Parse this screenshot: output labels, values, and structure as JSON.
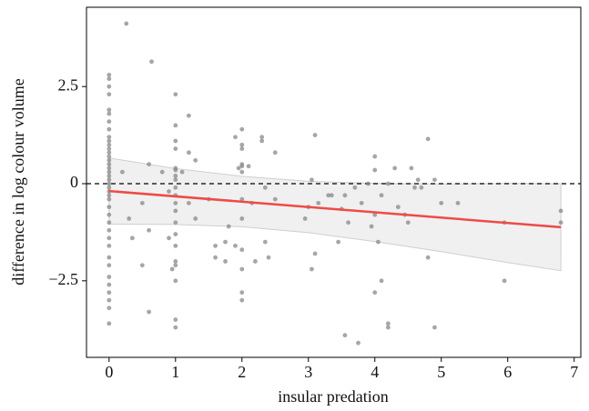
{
  "chart_data": {
    "type": "scatter",
    "xlabel": "insular predation",
    "ylabel": "difference in log colour volume",
    "xlim": [
      -0.34,
      7.1
    ],
    "ylim": [
      -4.47,
      4.54
    ],
    "xticks": [
      0,
      1,
      2,
      3,
      4,
      5,
      6,
      7
    ],
    "yticks": [
      {
        "value": -2.5,
        "label": "−2.5"
      },
      0,
      2.5
    ],
    "hline": 0,
    "color": "#888888",
    "x": [
      0,
      0,
      0,
      0,
      0,
      0,
      0,
      0,
      0,
      0,
      0,
      0,
      0,
      0,
      0,
      0,
      0,
      0,
      0,
      0,
      0,
      0,
      0,
      0,
      0,
      0,
      0,
      0,
      0,
      0,
      0,
      0,
      0,
      0,
      0,
      0,
      0,
      0,
      0,
      0.26,
      0.64,
      0.2,
      0.3,
      0.35,
      0.5,
      0.5,
      0.6,
      0.6,
      0.6,
      0.8,
      0.9,
      0.9,
      0.95,
      1,
      1,
      1,
      1,
      1,
      1,
      1,
      1,
      1,
      1,
      1,
      1,
      1,
      1,
      1,
      1,
      1,
      1,
      1,
      1,
      1.2,
      1.2,
      1.1,
      1.3,
      1.2,
      1.3,
      1.5,
      1.6,
      1.6,
      1.75,
      1.75,
      1.8,
      1.9,
      1.9,
      1.95,
      2,
      2,
      2,
      2,
      2,
      2,
      2,
      2,
      2,
      2,
      2,
      2,
      2.1,
      2.15,
      2.2,
      2.3,
      2.3,
      2.35,
      2.35,
      2.4,
      2.5,
      2.5,
      2.95,
      3.0,
      3.05,
      3.05,
      3.1,
      3.1,
      3.15,
      3.3,
      3.35,
      3.45,
      3.5,
      3.55,
      3.6,
      3.55,
      3.75,
      3.7,
      3.8,
      3.9,
      3.95,
      4.0,
      4.0,
      4.0,
      4.0,
      4.05,
      4.1,
      4.1,
      4.2,
      4.2,
      4.2,
      4.3,
      4.35,
      4.45,
      4.5,
      4.55,
      4.6,
      4.65,
      4.7,
      4.8,
      4.8,
      4.9,
      4.9,
      5.0,
      5.25,
      5.95,
      5.95,
      6.8,
      6.8
    ],
    "values": [
      2.8,
      2.7,
      2.5,
      2.3,
      1.9,
      1.8,
      1.6,
      1.4,
      1.2,
      1.1,
      1.0,
      0.9,
      0.8,
      0.7,
      0.6,
      0.5,
      0.4,
      0.3,
      0.2,
      0.1,
      0,
      -0.1,
      -0.2,
      -0.3,
      -0.4,
      -0.6,
      -0.8,
      -1.0,
      -1.2,
      -1.4,
      -1.6,
      -1.9,
      -2.1,
      -2.4,
      -2.6,
      -2.8,
      -3.0,
      -3.2,
      -3.6,
      4.12,
      3.14,
      0.3,
      -0.9,
      -1.4,
      -0.5,
      -2.1,
      0.5,
      -1.2,
      -3.3,
      0.3,
      -0.2,
      -1.4,
      -2.2,
      2.3,
      1.5,
      1.1,
      0.9,
      0.4,
      0.35,
      0.2,
      0.1,
      -0.1,
      -0.3,
      -0.5,
      -0.7,
      -1.0,
      -1.3,
      -1.6,
      -2.0,
      -2.1,
      -2.5,
      -3.5,
      -3.7,
      1.75,
      0.8,
      0.3,
      0.6,
      -0.5,
      -0.9,
      -0.4,
      -1.6,
      -1.9,
      -1.5,
      -2.0,
      -1.1,
      -1.6,
      1.2,
      0.4,
      1.4,
      1.0,
      0.9,
      0.5,
      0.45,
      0.3,
      -0.4,
      -0.9,
      -1.7,
      -2.2,
      -2.8,
      -3.0,
      0.45,
      -0.5,
      -2.0,
      1.2,
      1.1,
      -0.1,
      -1.5,
      -1.9,
      -0.4,
      0.8,
      -0.9,
      -0.6,
      0.1,
      -2.2,
      1.25,
      -1.8,
      -0.5,
      -0.3,
      -0.3,
      -1.5,
      -0.65,
      -0.3,
      -1.0,
      -3.9,
      -4.1,
      -0.1,
      -0.5,
      0.0,
      -1.1,
      0.7,
      0.35,
      -0.8,
      -2.8,
      -1.5,
      -0.3,
      -2.5,
      -3.6,
      -3.7,
      0.0,
      0.4,
      -0.6,
      -0.8,
      -1.0,
      0.4,
      -0.1,
      0.1,
      -0.1,
      -1.9,
      1.15,
      -3.7,
      0.1,
      -0.5,
      -0.5,
      -1.0,
      -2.5,
      -0.7,
      -1.0
    ],
    "fit": {
      "color": "#ee4b45",
      "x": [
        0,
        6.8
      ],
      "values": [
        -0.19,
        -1.12
      ]
    },
    "band": {
      "color": "#f0f0f0",
      "x": [
        0,
        1,
        2,
        3,
        4,
        5,
        6,
        6.8
      ],
      "upper": [
        0.66,
        0.39,
        0.19,
        0.06,
        0.01,
        -0.01,
        0.01,
        0.0
      ],
      "lower": [
        -1.04,
        -1.05,
        -1.11,
        -1.26,
        -1.49,
        -1.75,
        -2.03,
        -2.24
      ]
    }
  }
}
